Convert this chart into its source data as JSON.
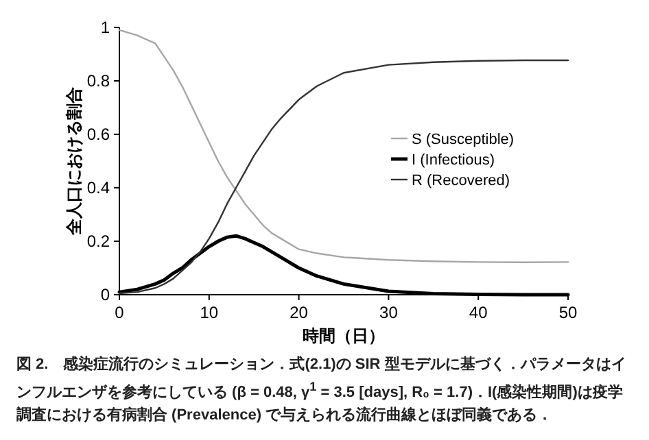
{
  "chart_data": {
    "type": "line",
    "xlabel": "時間（日）",
    "ylabel": "全人口における割合",
    "x": [
      0,
      2,
      4,
      5,
      6,
      7,
      8,
      9,
      10,
      11,
      12,
      13,
      14,
      15,
      16,
      17,
      18,
      20,
      22,
      25,
      30,
      35,
      40,
      45,
      50
    ],
    "series": [
      {
        "name": "S (Susceptible)",
        "color": "#a6a6a6",
        "values": [
          0.99,
          0.97,
          0.94,
          0.89,
          0.84,
          0.78,
          0.71,
          0.64,
          0.57,
          0.5,
          0.44,
          0.39,
          0.34,
          0.3,
          0.26,
          0.23,
          0.21,
          0.17,
          0.155,
          0.14,
          0.13,
          0.125,
          0.122,
          0.121,
          0.122
        ]
      },
      {
        "name": "I (Infectious)",
        "color": "#000000",
        "values": [
          0.01,
          0.02,
          0.04,
          0.055,
          0.08,
          0.1,
          0.13,
          0.155,
          0.18,
          0.2,
          0.215,
          0.22,
          0.21,
          0.195,
          0.18,
          0.16,
          0.14,
          0.1,
          0.07,
          0.04,
          0.013,
          0.004,
          0.001,
          0,
          0
        ]
      },
      {
        "name": "R (Recovered)",
        "color": "#333333",
        "values": [
          0.005,
          0.01,
          0.025,
          0.04,
          0.06,
          0.09,
          0.12,
          0.16,
          0.21,
          0.27,
          0.34,
          0.4,
          0.46,
          0.52,
          0.57,
          0.62,
          0.66,
          0.73,
          0.78,
          0.83,
          0.86,
          0.87,
          0.875,
          0.877,
          0.877
        ]
      }
    ],
    "xlim": [
      0,
      50
    ],
    "ylim": [
      0,
      1
    ],
    "xticks": [
      0,
      10,
      20,
      30,
      40,
      50
    ],
    "yticks": [
      0,
      0.2,
      0.4,
      0.6,
      0.8,
      1
    ],
    "legend": "right",
    "annotations": [
      "図 2.　感染症流行のシミュレーション．式(2.1)の SIR 型モデルに基づく．パラメータはインフルエンザを参考にしている (β = 0.48, γ$^{1}$ = 3.5 [days], R₀ = 1.7)．I(感染性期間)は疫学調査における有病割合 (Prevalence) で与えられる流行曲線とほぼ同義である．"
    ]
  }
}
